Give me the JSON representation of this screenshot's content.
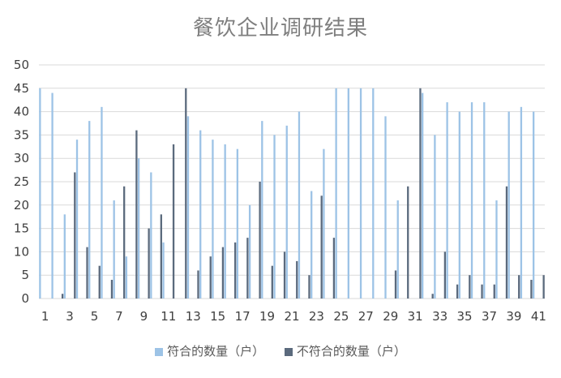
{
  "chart_data": {
    "type": "bar",
    "title": "餐饮企业调研结果",
    "xlabel": "",
    "ylabel": "",
    "ylim": [
      0,
      50
    ],
    "yticks": [
      0,
      5,
      10,
      15,
      20,
      25,
      30,
      35,
      40,
      45,
      50
    ],
    "x_tick_labels": [
      "1",
      "3",
      "5",
      "7",
      "9",
      "11",
      "13",
      "15",
      "17",
      "19",
      "21",
      "23",
      "25",
      "27",
      "29",
      "31",
      "33",
      "35",
      "37",
      "39",
      "41"
    ],
    "categories": [
      1,
      2,
      3,
      4,
      5,
      6,
      7,
      8,
      9,
      10,
      11,
      12,
      13,
      14,
      15,
      16,
      17,
      18,
      19,
      20,
      21,
      22,
      23,
      24,
      25,
      26,
      27,
      28,
      29,
      30,
      31,
      32,
      33,
      34,
      35,
      36,
      37,
      38,
      39,
      40,
      41
    ],
    "grid": "horizontal",
    "legend_position": "bottom",
    "series": [
      {
        "name": "符合的数量（户）",
        "color": "#9dc3e6",
        "values": [
          45,
          44,
          18,
          34,
          38,
          41,
          21,
          9,
          30,
          27,
          12,
          0,
          39,
          36,
          34,
          33,
          32,
          20,
          38,
          35,
          37,
          40,
          23,
          32,
          45,
          45,
          45,
          45,
          39,
          21,
          0,
          44,
          35,
          42,
          40,
          42,
          42,
          21,
          40,
          41,
          40
        ]
      },
      {
        "name": "不符合的数量（户）",
        "color": "#5b6a7d",
        "values": [
          0,
          1,
          27,
          11,
          7,
          4,
          24,
          36,
          15,
          18,
          33,
          45,
          6,
          9,
          11,
          12,
          13,
          25,
          7,
          10,
          8,
          5,
          22,
          13,
          0,
          0,
          0,
          0,
          6,
          24,
          45,
          1,
          10,
          3,
          5,
          3,
          3,
          24,
          5,
          4,
          5
        ]
      }
    ]
  }
}
